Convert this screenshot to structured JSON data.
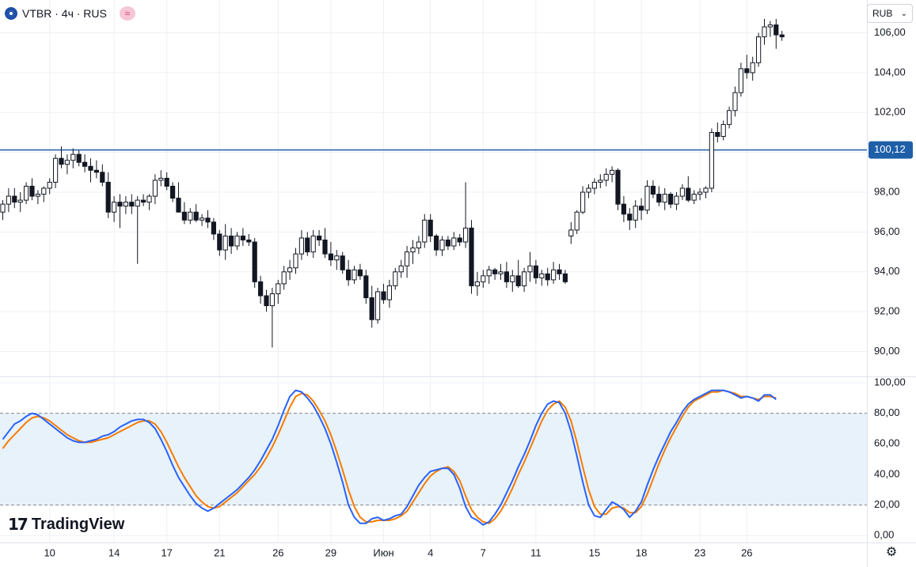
{
  "header": {
    "title": "VTBR · 4ч · RUS",
    "symbol_icon": "vtb-logo-icon",
    "indicator_icon": "wave-icon"
  },
  "currency": {
    "label": "RUB",
    "icon": "chevron-down-icon"
  },
  "brand": {
    "name": "TradingView"
  },
  "colors": {
    "up": "#131722",
    "down": "#131722",
    "hline": "#2962ff",
    "hline_label": "#1f5fa8",
    "stoch_k": "#2962ff",
    "stoch_d": "#f57c00",
    "band_fill": "#e8f2fb"
  },
  "chart_data": [
    {
      "type": "candlestick",
      "title": "VTBR · 4ч · RUS",
      "y_ticks": [
        "106,00",
        "104,00",
        "102,00",
        "100,00",
        "98,00",
        "96,00",
        "94,00",
        "92,00",
        "90,00"
      ],
      "y_tick_values": [
        106,
        104,
        102,
        100,
        98,
        96,
        94,
        92,
        90
      ],
      "ylim": [
        88.75,
        107.65
      ],
      "horizontal_line": {
        "value": 100.12,
        "label": "100,12"
      },
      "x_ticks": [
        "10",
        "14",
        "17",
        "21",
        "26",
        "29",
        "Июн",
        "4",
        "7",
        "11",
        "15",
        "18",
        "23",
        "26"
      ],
      "x_tick_candles": [
        8,
        19,
        28,
        37,
        47,
        56,
        65,
        73,
        82,
        91,
        101,
        109,
        119,
        127
      ],
      "candles_ohlc": [
        [
          97.0,
          97.6,
          96.6,
          97.4
        ],
        [
          97.4,
          98.2,
          97.0,
          97.8
        ],
        [
          97.8,
          98.2,
          97.2,
          97.5
        ],
        [
          97.5,
          98.0,
          97.0,
          97.6
        ],
        [
          97.6,
          98.5,
          97.4,
          98.3
        ],
        [
          98.3,
          98.7,
          97.6,
          97.8
        ],
        [
          97.8,
          98.1,
          97.4,
          97.9
        ],
        [
          97.9,
          98.3,
          97.5,
          98.2
        ],
        [
          98.2,
          98.7,
          97.9,
          98.5
        ],
        [
          98.5,
          99.9,
          98.2,
          99.7
        ],
        [
          99.7,
          100.3,
          99.2,
          99.4
        ],
        [
          99.4,
          99.9,
          98.9,
          99.6
        ],
        [
          99.6,
          100.2,
          99.2,
          99.9
        ],
        [
          99.9,
          100.1,
          99.3,
          99.5
        ],
        [
          99.5,
          99.9,
          99.0,
          99.3
        ],
        [
          99.3,
          99.7,
          98.5,
          99.1
        ],
        [
          99.1,
          99.6,
          98.7,
          99.0
        ],
        [
          99.0,
          99.4,
          98.3,
          98.5
        ],
        [
          98.5,
          99.0,
          96.7,
          97.0
        ],
        [
          97.0,
          97.8,
          96.5,
          97.5
        ],
        [
          97.5,
          97.9,
          96.2,
          97.3
        ],
        [
          97.3,
          97.8,
          96.9,
          97.5
        ],
        [
          97.5,
          97.9,
          96.9,
          97.3
        ],
        [
          97.3,
          97.8,
          94.4,
          97.6
        ],
        [
          97.6,
          97.9,
          97.3,
          97.5
        ],
        [
          97.5,
          97.9,
          97.1,
          97.8
        ],
        [
          97.8,
          98.9,
          97.4,
          98.6
        ],
        [
          98.6,
          99.1,
          98.3,
          98.7
        ],
        [
          98.7,
          99.0,
          98.1,
          98.3
        ],
        [
          98.3,
          98.5,
          97.5,
          97.7
        ],
        [
          97.7,
          98.5,
          97.4,
          97.0
        ],
        [
          97.0,
          97.5,
          96.4,
          96.6
        ],
        [
          96.6,
          97.2,
          96.4,
          97.0
        ],
        [
          97.0,
          97.4,
          96.5,
          96.6
        ],
        [
          96.6,
          96.9,
          96.3,
          96.7
        ],
        [
          96.7,
          97.1,
          96.2,
          96.5
        ],
        [
          96.5,
          96.7,
          95.6,
          95.9
        ],
        [
          95.9,
          96.1,
          94.8,
          95.1
        ],
        [
          95.1,
          96.4,
          94.6,
          95.8
        ],
        [
          95.8,
          96.2,
          94.9,
          95.3
        ],
        [
          95.3,
          96.0,
          95.1,
          95.8
        ],
        [
          95.8,
          96.2,
          95.3,
          95.6
        ],
        [
          95.6,
          95.9,
          95.3,
          95.5
        ],
        [
          95.5,
          95.7,
          93.2,
          93.5
        ],
        [
          93.5,
          93.8,
          92.4,
          92.8
        ],
        [
          92.8,
          93.1,
          92.0,
          92.3
        ],
        [
          92.3,
          93.2,
          90.2,
          92.9
        ],
        [
          92.9,
          93.6,
          92.4,
          93.4
        ],
        [
          93.4,
          94.3,
          93.1,
          94.0
        ],
        [
          94.0,
          94.6,
          93.6,
          94.2
        ],
        [
          94.2,
          95.2,
          93.9,
          94.9
        ],
        [
          94.9,
          96.1,
          94.6,
          95.7
        ],
        [
          95.7,
          96.0,
          94.8,
          95.0
        ],
        [
          95.0,
          96.1,
          94.7,
          95.8
        ],
        [
          95.8,
          96.1,
          95.3,
          95.6
        ],
        [
          95.6,
          96.2,
          94.7,
          94.9
        ],
        [
          94.9,
          95.5,
          94.3,
          94.6
        ],
        [
          94.6,
          95.1,
          94.1,
          94.8
        ],
        [
          94.8,
          95.0,
          93.9,
          94.1
        ],
        [
          94.1,
          94.6,
          93.3,
          93.6
        ],
        [
          93.6,
          94.3,
          93.4,
          94.1
        ],
        [
          94.1,
          94.4,
          93.6,
          93.8
        ],
        [
          93.8,
          94.1,
          92.4,
          92.7
        ],
        [
          92.7,
          93.3,
          91.2,
          91.6
        ],
        [
          91.6,
          93.2,
          91.4,
          93.0
        ],
        [
          93.0,
          93.4,
          92.4,
          92.6
        ],
        [
          92.6,
          93.6,
          92.2,
          93.3
        ],
        [
          93.3,
          94.2,
          93.1,
          94.0
        ],
        [
          94.0,
          94.6,
          93.7,
          94.3
        ],
        [
          94.3,
          95.3,
          93.7,
          95.0
        ],
        [
          95.0,
          95.6,
          94.4,
          95.2
        ],
        [
          95.2,
          95.8,
          94.9,
          95.5
        ],
        [
          95.5,
          96.9,
          95.2,
          96.6
        ],
        [
          96.6,
          96.9,
          95.5,
          95.8
        ],
        [
          95.8,
          95.9,
          94.8,
          95.1
        ],
        [
          95.1,
          95.8,
          94.8,
          95.6
        ],
        [
          95.6,
          95.8,
          95.1,
          95.3
        ],
        [
          95.3,
          96.0,
          95.1,
          95.7
        ],
        [
          95.7,
          95.9,
          95.3,
          95.5
        ],
        [
          95.5,
          98.5,
          95.2,
          96.2
        ],
        [
          96.2,
          96.6,
          92.9,
          93.3
        ],
        [
          93.3,
          94.0,
          92.8,
          93.5
        ],
        [
          93.5,
          94.1,
          93.2,
          93.8
        ],
        [
          93.8,
          94.3,
          93.4,
          94.1
        ],
        [
          94.1,
          94.2,
          93.6,
          93.9
        ],
        [
          93.9,
          94.4,
          93.6,
          94.0
        ],
        [
          94.0,
          94.5,
          93.2,
          93.5
        ],
        [
          93.5,
          94.1,
          93.0,
          93.8
        ],
        [
          93.8,
          94.6,
          93.2,
          93.3
        ],
        [
          93.3,
          94.2,
          93.0,
          94.0
        ],
        [
          94.0,
          95.0,
          93.5,
          94.3
        ],
        [
          94.3,
          94.6,
          93.4,
          93.7
        ],
        [
          93.7,
          94.1,
          93.3,
          93.9
        ],
        [
          93.9,
          94.2,
          93.3,
          93.6
        ],
        [
          93.6,
          94.5,
          93.4,
          94.1
        ],
        [
          94.1,
          94.4,
          93.6,
          93.9
        ],
        [
          93.9,
          94.1,
          93.4,
          93.5
        ],
        [
          95.8,
          96.5,
          95.4,
          96.1
        ],
        [
          96.1,
          97.1,
          95.9,
          97.0
        ],
        [
          97.0,
          98.3,
          96.9,
          98.0
        ],
        [
          98.0,
          98.4,
          97.7,
          98.2
        ],
        [
          98.2,
          98.7,
          97.9,
          98.5
        ],
        [
          98.5,
          98.9,
          98.2,
          98.6
        ],
        [
          98.6,
          99.2,
          98.3,
          98.9
        ],
        [
          98.9,
          99.3,
          98.5,
          99.1
        ],
        [
          99.1,
          99.2,
          97.1,
          97.4
        ],
        [
          97.4,
          97.8,
          96.5,
          96.9
        ],
        [
          96.9,
          97.2,
          96.1,
          96.6
        ],
        [
          96.6,
          97.6,
          96.2,
          97.3
        ],
        [
          97.3,
          97.7,
          96.6,
          97.1
        ],
        [
          97.1,
          98.6,
          96.9,
          98.3
        ],
        [
          98.3,
          98.6,
          97.7,
          97.9
        ],
        [
          97.9,
          98.3,
          97.3,
          97.5
        ],
        [
          97.5,
          98.2,
          97.1,
          97.9
        ],
        [
          97.9,
          98.0,
          97.2,
          97.4
        ],
        [
          97.4,
          98.0,
          97.1,
          97.8
        ],
        [
          97.8,
          98.4,
          97.6,
          98.2
        ],
        [
          98.2,
          98.8,
          97.5,
          97.6
        ],
        [
          97.6,
          98.1,
          97.4,
          97.9
        ],
        [
          97.9,
          98.2,
          97.6,
          98.0
        ],
        [
          98.0,
          98.3,
          97.7,
          98.2
        ],
        [
          98.2,
          101.2,
          98.0,
          101.0
        ],
        [
          101.0,
          101.5,
          100.5,
          100.8
        ],
        [
          100.8,
          101.6,
          100.6,
          101.4
        ],
        [
          101.4,
          102.3,
          101.2,
          102.1
        ],
        [
          102.1,
          103.3,
          101.8,
          103.0
        ],
        [
          103.0,
          104.5,
          102.8,
          104.2
        ],
        [
          104.2,
          104.9,
          103.7,
          104.0
        ],
        [
          104.0,
          104.8,
          103.6,
          104.5
        ],
        [
          104.5,
          106.0,
          104.3,
          105.8
        ],
        [
          105.8,
          106.7,
          105.4,
          106.3
        ],
        [
          106.3,
          106.6,
          105.8,
          106.4
        ],
        [
          106.4,
          106.7,
          105.2,
          105.9
        ],
        [
          105.9,
          106.1,
          105.6,
          105.8
        ]
      ]
    },
    {
      "type": "line",
      "title": "",
      "y_ticks": [
        "100,00",
        "80,00",
        "60,00",
        "40,00",
        "20,00",
        "0,00"
      ],
      "y_tick_values": [
        100,
        80,
        60,
        40,
        20,
        0
      ],
      "ylim": [
        -4.5,
        103.6
      ],
      "band": [
        20,
        80
      ],
      "x": "candle index (same as price panel)",
      "series": [
        {
          "color": "#2962ff",
          "values": [
            63,
            68,
            73,
            75,
            78,
            80,
            79,
            76,
            73,
            70,
            67,
            64,
            62,
            61,
            61,
            62,
            63,
            65,
            66,
            68,
            71,
            73,
            75,
            76,
            76,
            74,
            70,
            63,
            55,
            46,
            38,
            32,
            26,
            21,
            18,
            16,
            18,
            21,
            24,
            27,
            30,
            34,
            38,
            43,
            49,
            56,
            63,
            72,
            82,
            91,
            95,
            94,
            90,
            85,
            78,
            70,
            60,
            48,
            35,
            20,
            12,
            8,
            8,
            11,
            12,
            10,
            11,
            13,
            14,
            19,
            26,
            33,
            38,
            42,
            43,
            44,
            44,
            40,
            31,
            19,
            12,
            10,
            7,
            9,
            14,
            20,
            28,
            36,
            45,
            53,
            62,
            72,
            80,
            86,
            88,
            87,
            80,
            68,
            52,
            35,
            20,
            13,
            12,
            17,
            22,
            20,
            17,
            12,
            16,
            22,
            33,
            43,
            52,
            60,
            68,
            74,
            81,
            86,
            89,
            91,
            93,
            95,
            95,
            95,
            94,
            92,
            90,
            91,
            90,
            88,
            92,
            92,
            89
          ]
        },
        {
          "color": "#f57c00",
          "values": [
            57,
            62,
            66,
            70,
            74,
            77,
            78,
            77,
            75,
            72,
            69,
            66,
            64,
            62,
            61,
            61,
            62,
            63,
            64,
            66,
            68,
            70,
            72,
            74,
            75,
            75,
            73,
            68,
            61,
            53,
            45,
            38,
            32,
            26,
            22,
            19,
            18,
            19,
            22,
            25,
            28,
            32,
            36,
            40,
            45,
            51,
            58,
            66,
            75,
            84,
            91,
            93,
            92,
            88,
            82,
            75,
            66,
            55,
            43,
            30,
            19,
            12,
            9,
            9,
            10,
            10,
            10,
            11,
            13,
            16,
            22,
            28,
            34,
            39,
            42,
            44,
            45,
            42,
            36,
            26,
            17,
            12,
            9,
            8,
            11,
            16,
            23,
            31,
            40,
            48,
            57,
            66,
            75,
            82,
            86,
            88,
            84,
            75,
            61,
            45,
            30,
            19,
            14,
            14,
            18,
            19,
            18,
            15,
            15,
            19,
            27,
            37,
            47,
            56,
            64,
            71,
            78,
            84,
            88,
            90,
            92,
            94,
            94,
            95,
            94,
            93,
            91,
            91,
            90,
            89,
            91,
            91,
            90
          ]
        }
      ]
    }
  ]
}
